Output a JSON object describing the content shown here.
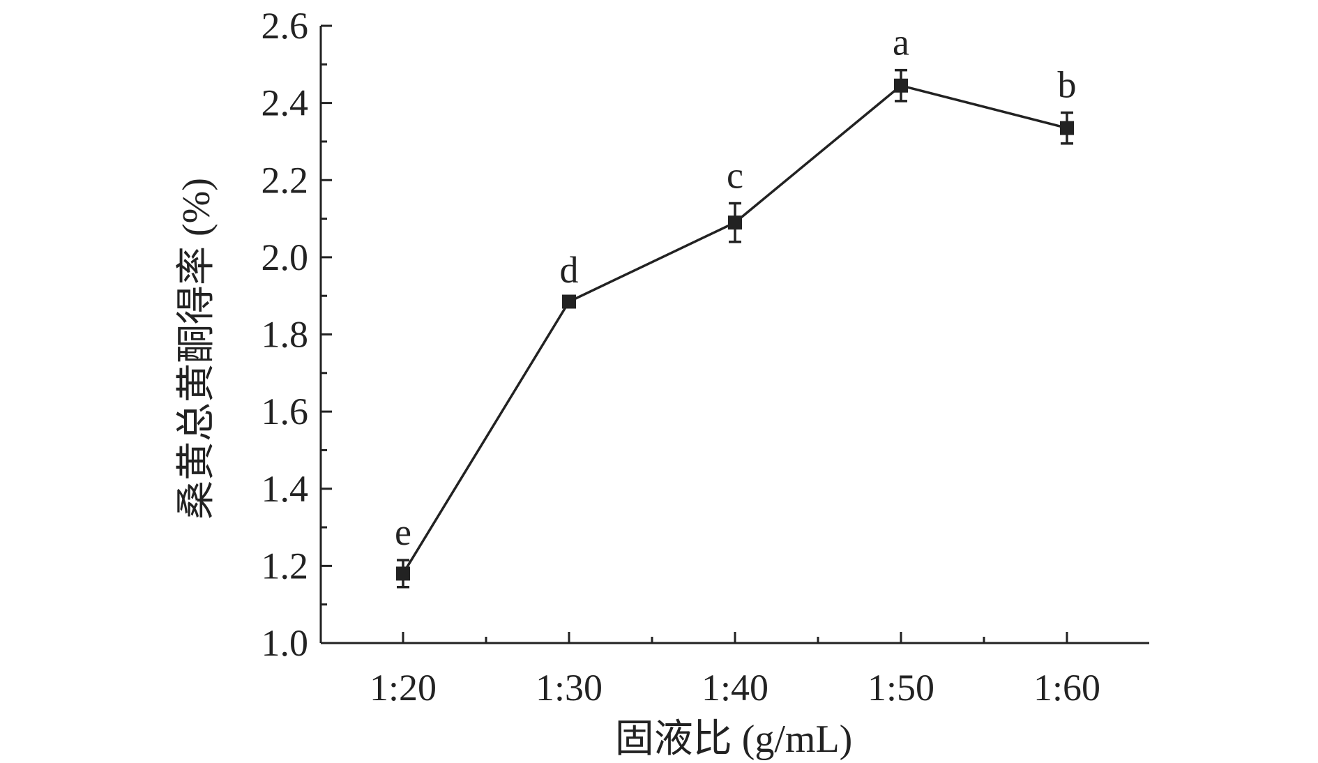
{
  "chart_data": {
    "type": "line",
    "title": "",
    "xlabel": "固液比 (g/mL)",
    "ylabel": "桑黄总黄酮得率 (%)",
    "categories": [
      "1:20",
      "1:30",
      "1:40",
      "1:50",
      "1:60"
    ],
    "series": [
      {
        "values": [
          1.18,
          1.885,
          2.09,
          2.445,
          2.335
        ],
        "errors": [
          0.035,
          0.01,
          0.05,
          0.04,
          0.04
        ],
        "labels": [
          "e",
          "d",
          "c",
          "a",
          "b"
        ]
      }
    ],
    "ylim": [
      1.0,
      2.6
    ],
    "yticks": [
      "1.0",
      "1.2",
      "1.4",
      "1.6",
      "1.8",
      "2.0",
      "2.2",
      "2.4",
      "2.6"
    ],
    "grid": false,
    "legend": "none",
    "marker": "square",
    "color": "#222222"
  }
}
